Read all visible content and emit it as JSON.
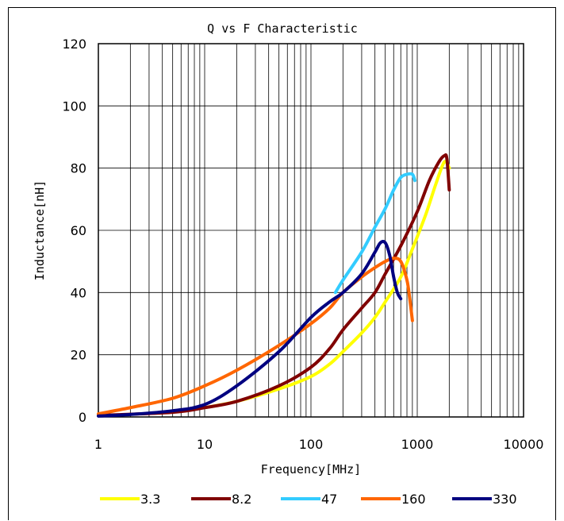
{
  "chart_data": {
    "type": "line",
    "title": "Q vs F Characteristic",
    "xlabel": "Frequency[MHz]",
    "ylabel": "Inductance[nH]",
    "xscale": "log",
    "xlim": [
      1,
      10000
    ],
    "ylim": [
      0,
      120
    ],
    "xticks": [
      1,
      10,
      100,
      1000,
      10000
    ],
    "xtick_labels": [
      "1",
      "10",
      "100",
      "1000",
      "10000"
    ],
    "yticks": [
      0,
      20,
      40,
      60,
      80,
      100,
      120
    ],
    "ytick_labels": [
      "0",
      "20",
      "40",
      "60",
      "80",
      "100",
      "120"
    ],
    "grid": true,
    "legend_position": "bottom",
    "series": [
      {
        "name": "3.3",
        "color": "#ffff00",
        "points": [
          [
            10,
            3
          ],
          [
            20,
            5
          ],
          [
            50,
            9
          ],
          [
            100,
            13
          ],
          [
            150,
            17
          ],
          [
            200,
            21
          ],
          [
            300,
            27
          ],
          [
            400,
            32
          ],
          [
            500,
            37
          ],
          [
            700,
            45
          ],
          [
            900,
            54
          ],
          [
            1200,
            65
          ],
          [
            1500,
            75
          ],
          [
            1800,
            82
          ],
          [
            2000,
            80
          ]
        ]
      },
      {
        "name": "8.2",
        "color": "#800000",
        "points": [
          [
            1,
            0.5
          ],
          [
            5,
            1.5
          ],
          [
            10,
            3
          ],
          [
            20,
            5
          ],
          [
            50,
            10
          ],
          [
            100,
            16
          ],
          [
            150,
            22
          ],
          [
            200,
            28
          ],
          [
            300,
            35
          ],
          [
            400,
            40
          ],
          [
            500,
            46
          ],
          [
            700,
            55
          ],
          [
            1000,
            66
          ],
          [
            1300,
            76
          ],
          [
            1600,
            82
          ],
          [
            1800,
            84
          ],
          [
            1900,
            83
          ],
          [
            2000,
            73
          ]
        ]
      },
      {
        "name": "47",
        "color": "#33ccff",
        "points": [
          [
            170,
            40
          ],
          [
            200,
            44
          ],
          [
            300,
            53
          ],
          [
            400,
            61
          ],
          [
            500,
            67
          ],
          [
            600,
            73
          ],
          [
            700,
            77
          ],
          [
            800,
            78
          ],
          [
            900,
            78
          ],
          [
            950,
            76
          ]
        ]
      },
      {
        "name": "160",
        "color": "#ff6600",
        "points": [
          [
            1,
            1
          ],
          [
            2,
            3
          ],
          [
            5,
            6
          ],
          [
            10,
            10
          ],
          [
            20,
            15
          ],
          [
            50,
            23
          ],
          [
            100,
            30
          ],
          [
            150,
            35
          ],
          [
            200,
            40
          ],
          [
            300,
            45
          ],
          [
            400,
            48
          ],
          [
            500,
            50
          ],
          [
            600,
            51
          ],
          [
            700,
            50
          ],
          [
            800,
            44
          ],
          [
            850,
            38
          ],
          [
            900,
            31
          ]
        ]
      },
      {
        "name": "330",
        "color": "#000080",
        "points": [
          [
            1,
            0.3
          ],
          [
            2,
            0.8
          ],
          [
            5,
            2
          ],
          [
            10,
            4
          ],
          [
            20,
            10
          ],
          [
            50,
            21
          ],
          [
            100,
            32
          ],
          [
            150,
            37
          ],
          [
            200,
            40
          ],
          [
            300,
            46
          ],
          [
            400,
            53
          ],
          [
            450,
            56
          ],
          [
            500,
            56
          ],
          [
            550,
            52
          ],
          [
            600,
            45
          ],
          [
            650,
            40
          ],
          [
            700,
            38
          ]
        ]
      }
    ]
  }
}
